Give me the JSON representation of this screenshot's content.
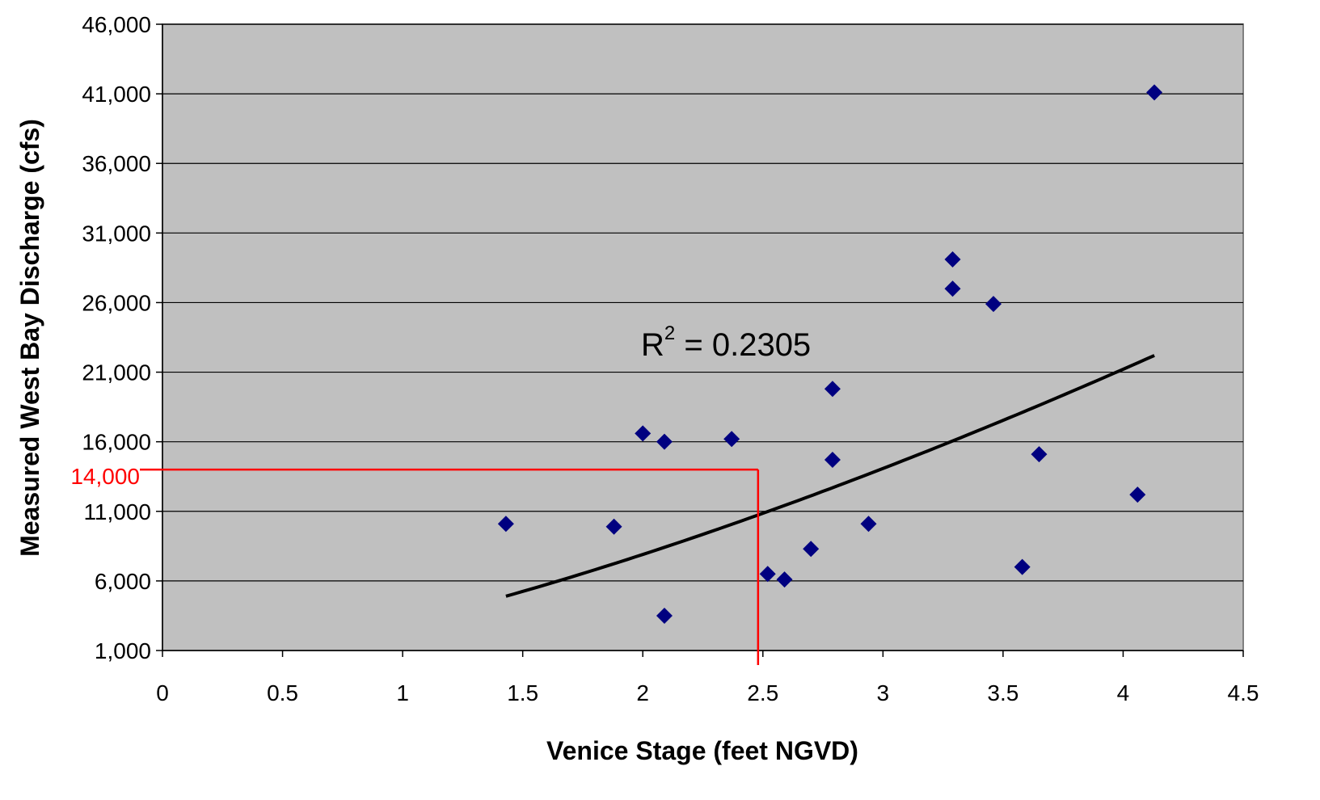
{
  "chart_data": {
    "type": "scatter",
    "title": "",
    "xlabel": "Venice Stage (feet NGVD)",
    "ylabel": "Measured West Bay Discharge (cfs)",
    "xlim": [
      0,
      4.5
    ],
    "ylim": [
      1000,
      46000
    ],
    "x_ticks": [
      0,
      0.5,
      1,
      1.5,
      2,
      2.5,
      3,
      3.5,
      4,
      4.5
    ],
    "x_tick_labels": [
      "0",
      "0.5",
      "1",
      "1.5",
      "2",
      "2.5",
      "3",
      "3.5",
      "4",
      "4.5"
    ],
    "y_ticks": [
      1000,
      6000,
      11000,
      16000,
      21000,
      26000,
      31000,
      36000,
      41000,
      46000
    ],
    "y_tick_labels": [
      "1,000",
      "6,000",
      "11,000",
      "16,000",
      "21,000",
      "26,000",
      "31,000",
      "36,000",
      "41,000",
      "46,000"
    ],
    "grid": "horizontal",
    "legend": "none",
    "points": [
      {
        "x": 1.43,
        "y": 10100
      },
      {
        "x": 1.88,
        "y": 9900
      },
      {
        "x": 2.0,
        "y": 16600
      },
      {
        "x": 2.09,
        "y": 16000
      },
      {
        "x": 2.09,
        "y": 3500
      },
      {
        "x": 2.37,
        "y": 16200
      },
      {
        "x": 2.52,
        "y": 6500
      },
      {
        "x": 2.59,
        "y": 6100
      },
      {
        "x": 2.7,
        "y": 8300
      },
      {
        "x": 2.79,
        "y": 19800
      },
      {
        "x": 2.79,
        "y": 14700
      },
      {
        "x": 2.94,
        "y": 10100
      },
      {
        "x": 3.29,
        "y": 29100
      },
      {
        "x": 3.29,
        "y": 27000
      },
      {
        "x": 3.46,
        "y": 25900
      },
      {
        "x": 3.58,
        "y": 7000
      },
      {
        "x": 3.65,
        "y": 15100
      },
      {
        "x": 4.06,
        "y": 12200
      },
      {
        "x": 4.13,
        "y": 41100
      }
    ],
    "trendline": {
      "type": "power",
      "x_range": [
        1.43,
        4.13
      ],
      "start_y": 4900,
      "end_y": 22200,
      "r_squared_label": "R",
      "r_squared_sup": "2",
      "r_squared_value": " = 0.2305"
    },
    "reference_lines": {
      "x": 2.48,
      "y": 14000,
      "y_label": "14,000",
      "color": "#ff0000"
    },
    "colors": {
      "plot_background": "#c0c0c0",
      "plot_border": "#808080",
      "gridline": "#000000",
      "marker": "#000080",
      "trendline": "#000000"
    }
  }
}
